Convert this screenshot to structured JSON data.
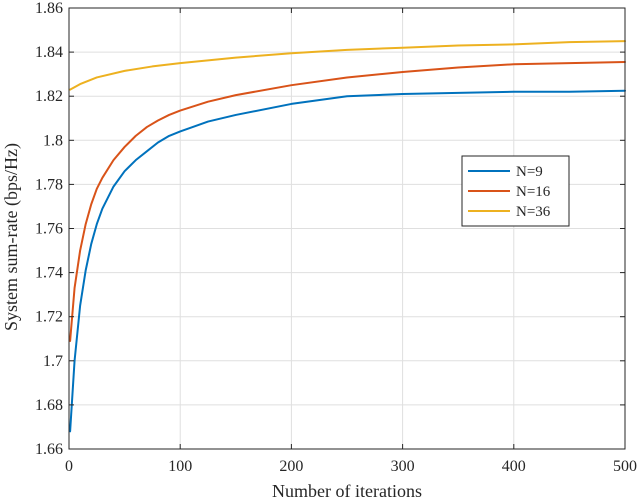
{
  "chart_data": {
    "type": "line",
    "title": "",
    "xlabel": "Number of iterations",
    "ylabel": "System sum-rate (bps/Hz)",
    "xlim": [
      0,
      500
    ],
    "ylim": [
      1.66,
      1.86
    ],
    "xticks": [
      0,
      100,
      200,
      300,
      400,
      500
    ],
    "xtick_labels": [
      "0",
      "100",
      "200",
      "300",
      "400",
      "500"
    ],
    "yticks": [
      1.66,
      1.68,
      1.7,
      1.72,
      1.74,
      1.76,
      1.78,
      1.8,
      1.82,
      1.84,
      1.86
    ],
    "ytick_labels": [
      "1.66",
      "1.68",
      "1.7",
      "1.72",
      "1.74",
      "1.76",
      "1.78",
      "1.8",
      "1.82",
      "1.84",
      "1.86"
    ],
    "grid": true,
    "legend_position": "right",
    "series": [
      {
        "name": "N=9",
        "color": "#0072BD",
        "x": [
          1,
          5,
          10,
          15,
          20,
          25,
          30,
          40,
          50,
          60,
          70,
          80,
          90,
          100,
          125,
          150,
          200,
          250,
          300,
          350,
          400,
          450,
          500
        ],
        "y": [
          1.668,
          1.7,
          1.725,
          1.741,
          1.753,
          1.762,
          1.769,
          1.779,
          1.786,
          1.791,
          1.795,
          1.799,
          1.802,
          1.804,
          1.8085,
          1.8115,
          1.8165,
          1.82,
          1.821,
          1.8215,
          1.822,
          1.822,
          1.8225
        ]
      },
      {
        "name": "N=16",
        "color": "#D95319",
        "x": [
          1,
          5,
          10,
          15,
          20,
          25,
          30,
          40,
          50,
          60,
          70,
          80,
          90,
          100,
          125,
          150,
          200,
          250,
          300,
          350,
          400,
          450,
          500
        ],
        "y": [
          1.709,
          1.733,
          1.75,
          1.762,
          1.771,
          1.778,
          1.783,
          1.791,
          1.797,
          1.802,
          1.806,
          1.809,
          1.8115,
          1.8135,
          1.8175,
          1.8205,
          1.825,
          1.8285,
          1.831,
          1.833,
          1.8345,
          1.835,
          1.8355
        ]
      },
      {
        "name": "N=36",
        "color": "#EDB120",
        "x": [
          1,
          10,
          25,
          50,
          75,
          100,
          150,
          200,
          250,
          300,
          350,
          400,
          450,
          500
        ],
        "y": [
          1.823,
          1.8255,
          1.8285,
          1.8315,
          1.8335,
          1.835,
          1.8375,
          1.8395,
          1.841,
          1.842,
          1.843,
          1.8435,
          1.8445,
          1.845
        ]
      }
    ]
  }
}
